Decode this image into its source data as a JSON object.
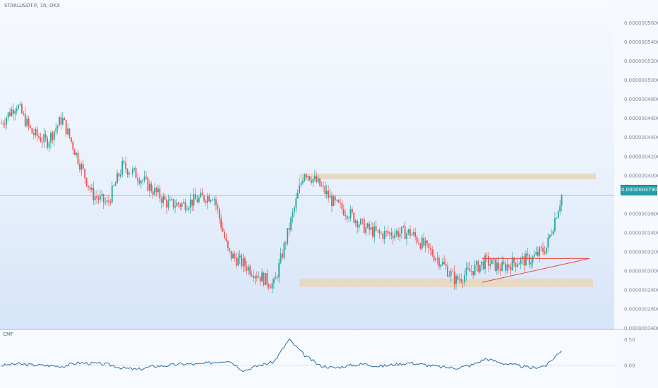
{
  "header": {
    "symbol": "STARLUSDT.P",
    "interval": "1h",
    "exchange": "OKX"
  },
  "indicator": {
    "name": "CMF"
  },
  "colors": {
    "up": "#26a69a",
    "down": "#ef5350",
    "zone": "#e8d6bc",
    "trendline": "#e8483f",
    "cmf_line": "#2f6fa8",
    "price_tag": "#26a0a8"
  },
  "price_axis": {
    "ticks": [
      "0.0000005600",
      "0.0000005400",
      "0.0000005200",
      "0.0000005000",
      "0.0000004800",
      "0.0000004600",
      "0.0000004400",
      "0.0000004200",
      "0.0000004000",
      "0.0000003600",
      "0.0000003400",
      "0.0000003200",
      "0.0000003000",
      "0.0000002800",
      "0.0000002600",
      "0.0000002400"
    ],
    "current_price": "0.0000003790"
  },
  "cmf_axis": {
    "ticks": [
      "0.50",
      "0.00"
    ]
  },
  "chart_data": {
    "type": "candlestick",
    "title": "STARLUSDT.P, 1h, OKX",
    "y_unit": "USDT",
    "ylim": [
      2.4e-07,
      5.73e-07
    ],
    "current_price": 3.79e-07,
    "resistance_zone": [
      3.96e-07,
      4.02e-07
    ],
    "support_zone": [
      2.83e-07,
      2.92e-07
    ],
    "ascending_triangle": {
      "resistance": 3.13e-07,
      "start_low": 2.88e-07,
      "apex_price": 3.13e-07
    },
    "price_path": [
      4.55e-07,
      4.75e-07,
      4.45e-07,
      4.35e-07,
      4.6e-07,
      4.2e-07,
      3.8e-07,
      3.7e-07,
      4.1e-07,
      4e-07,
      3.85e-07,
      3.7e-07,
      3.7e-07,
      3.75e-07,
      3.8e-07,
      3.18e-07,
      3.07e-07,
      2.95e-07,
      2.85e-07,
      3.45e-07,
      4.05e-07,
      3.9e-07,
      3.7e-07,
      3.6e-07,
      3.45e-07,
      3.38e-07,
      3.4e-07,
      3.4e-07,
      3.25e-07,
      3.1e-07,
      2.9e-07,
      3e-07,
      3.1e-07,
      3.03e-07,
      3.1e-07,
      3.12e-07,
      3.25e-07,
      3.79e-07
    ],
    "cmf_path": [
      0.0,
      0.03,
      0.01,
      0.0,
      -0.02,
      0.05,
      0.04,
      0.02,
      -0.05,
      -0.08,
      -0.02,
      0.0,
      0.03,
      0.02,
      0.06,
      0.1,
      -0.1,
      0.0,
      0.07,
      0.5,
      0.2,
      0.0,
      -0.05,
      0.0,
      0.03,
      -0.02,
      0.02,
      0.05,
      0.01,
      -0.03,
      -0.05,
      0.0,
      0.13,
      0.05,
      0.0,
      -0.05,
      0.0,
      0.3
    ],
    "cmf_ylim": [
      -0.3,
      0.6
    ],
    "grid": false
  }
}
